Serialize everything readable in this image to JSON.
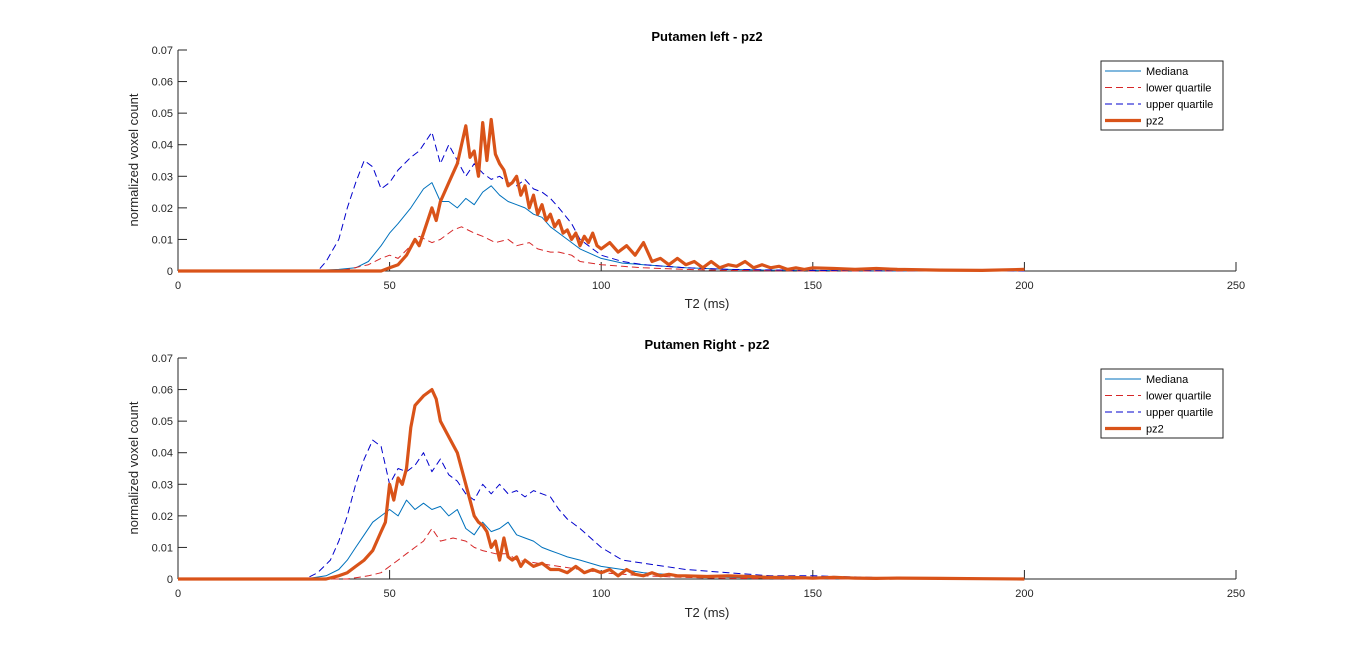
{
  "chart_data": [
    {
      "type": "line",
      "title": "Putamen left - pz2",
      "xlabel": "T2 (ms)",
      "ylabel": "normalized voxel count",
      "xlim": [
        0,
        250
      ],
      "ylim": [
        0,
        0.07
      ],
      "xticks": [
        0,
        50,
        100,
        150,
        200,
        250
      ],
      "yticks": [
        0,
        0.01,
        0.02,
        0.03,
        0.04,
        0.05,
        0.06,
        0.07
      ],
      "xtick_labels": [
        "0",
        "50",
        "100",
        "150",
        "200",
        "250"
      ],
      "ytick_labels": [
        "0",
        "0.01",
        "0.02",
        "0.03",
        "0.04",
        "0.05",
        "0.06",
        "0.07"
      ],
      "legend_position": "top-right",
      "series": [
        {
          "name": "Mediana",
          "color": "#0072BD",
          "style": "solid",
          "x": [
            0,
            30,
            38,
            42,
            45,
            48,
            50,
            52,
            55,
            58,
            60,
            62,
            64,
            66,
            68,
            70,
            72,
            74,
            76,
            78,
            80,
            82,
            84,
            86,
            88,
            90,
            92,
            95,
            100,
            105,
            110,
            120,
            130,
            140,
            150,
            160,
            170,
            200
          ],
          "y": [
            0,
            0,
            0.0005,
            0.001,
            0.003,
            0.008,
            0.012,
            0.015,
            0.02,
            0.026,
            0.028,
            0.022,
            0.022,
            0.02,
            0.023,
            0.021,
            0.025,
            0.027,
            0.024,
            0.022,
            0.021,
            0.02,
            0.018,
            0.017,
            0.014,
            0.012,
            0.01,
            0.007,
            0.004,
            0.0025,
            0.002,
            0.001,
            0.0005,
            0.0003,
            0.0002,
            0.0001,
            0,
            0
          ]
        },
        {
          "name": "lower quartile",
          "color": "#D62728",
          "style": "dashed",
          "x": [
            0,
            35,
            40,
            45,
            48,
            50,
            52,
            55,
            57,
            60,
            62,
            65,
            67,
            70,
            72,
            75,
            78,
            80,
            83,
            85,
            88,
            90,
            93,
            95,
            100,
            105,
            110,
            120,
            130,
            150,
            200
          ],
          "y": [
            0,
            0,
            0.0005,
            0.002,
            0.004,
            0.005,
            0.004,
            0.008,
            0.011,
            0.009,
            0.01,
            0.013,
            0.014,
            0.012,
            0.011,
            0.009,
            0.01,
            0.008,
            0.009,
            0.007,
            0.006,
            0.006,
            0.005,
            0.003,
            0.002,
            0.0015,
            0.001,
            0.0005,
            0.0002,
            0,
            0
          ]
        },
        {
          "name": "upper quartile",
          "color": "#0000CC",
          "style": "dashed",
          "x": [
            0,
            33,
            35,
            38,
            40,
            42,
            44,
            46,
            48,
            50,
            52,
            55,
            57,
            60,
            62,
            64,
            66,
            68,
            70,
            72,
            74,
            76,
            78,
            80,
            82,
            84,
            86,
            88,
            90,
            93,
            95,
            100,
            105,
            110,
            120,
            130,
            150,
            200
          ],
          "y": [
            0,
            0,
            0.003,
            0.01,
            0.02,
            0.028,
            0.035,
            0.033,
            0.026,
            0.028,
            0.032,
            0.036,
            0.038,
            0.044,
            0.034,
            0.04,
            0.035,
            0.03,
            0.034,
            0.031,
            0.029,
            0.03,
            0.028,
            0.027,
            0.029,
            0.026,
            0.025,
            0.023,
            0.02,
            0.015,
            0.01,
            0.005,
            0.003,
            0.002,
            0.001,
            0.0005,
            0.0002,
            0
          ]
        },
        {
          "name": "pz2",
          "color": "#D95319",
          "style": "thick",
          "x": [
            0,
            48,
            50,
            52,
            54,
            56,
            57,
            58,
            60,
            61,
            62,
            63,
            64,
            66,
            68,
            69,
            70,
            71,
            72,
            73,
            74,
            75,
            76,
            77,
            78,
            79,
            80,
            81,
            82,
            83,
            84,
            85,
            86,
            87,
            88,
            89,
            90,
            91,
            92,
            93,
            94,
            95,
            96,
            97,
            98,
            99,
            100,
            102,
            104,
            106,
            108,
            110,
            112,
            114,
            116,
            118,
            120,
            122,
            124,
            126,
            128,
            130,
            132,
            134,
            136,
            138,
            140,
            142,
            144,
            146,
            148,
            150,
            155,
            160,
            165,
            170,
            180,
            190,
            200
          ],
          "y": [
            0,
            0,
            0.001,
            0.002,
            0.005,
            0.01,
            0.008,
            0.012,
            0.02,
            0.016,
            0.022,
            0.025,
            0.028,
            0.034,
            0.046,
            0.036,
            0.038,
            0.03,
            0.047,
            0.035,
            0.048,
            0.037,
            0.034,
            0.032,
            0.027,
            0.028,
            0.03,
            0.024,
            0.027,
            0.02,
            0.024,
            0.018,
            0.021,
            0.016,
            0.018,
            0.014,
            0.016,
            0.012,
            0.013,
            0.01,
            0.012,
            0.008,
            0.011,
            0.009,
            0.012,
            0.008,
            0.007,
            0.009,
            0.006,
            0.008,
            0.005,
            0.009,
            0.003,
            0.004,
            0.002,
            0.004,
            0.002,
            0.003,
            0.001,
            0.003,
            0.001,
            0.002,
            0.0015,
            0.003,
            0.001,
            0.002,
            0.001,
            0.0015,
            0.0005,
            0.001,
            0.0005,
            0.001,
            0.0008,
            0.0005,
            0.0008,
            0.0005,
            0.0003,
            0.0002,
            0.0005
          ]
        }
      ]
    },
    {
      "type": "line",
      "title": "Putamen Right - pz2",
      "xlabel": "T2 (ms)",
      "ylabel": "normalized voxel count",
      "xlim": [
        0,
        250
      ],
      "ylim": [
        0,
        0.07
      ],
      "xticks": [
        0,
        50,
        100,
        150,
        200,
        250
      ],
      "yticks": [
        0,
        0.01,
        0.02,
        0.03,
        0.04,
        0.05,
        0.06,
        0.07
      ],
      "xtick_labels": [
        "0",
        "50",
        "100",
        "150",
        "200",
        "250"
      ],
      "ytick_labels": [
        "0",
        "0.01",
        "0.02",
        "0.03",
        "0.04",
        "0.05",
        "0.06",
        "0.07"
      ],
      "legend_position": "top-right",
      "series": [
        {
          "name": "Mediana",
          "color": "#0072BD",
          "style": "solid",
          "x": [
            0,
            30,
            35,
            38,
            40,
            42,
            44,
            46,
            48,
            50,
            52,
            54,
            56,
            58,
            60,
            62,
            64,
            66,
            68,
            70,
            72,
            74,
            76,
            78,
            80,
            82,
            84,
            86,
            88,
            90,
            92,
            95,
            100,
            105,
            110,
            120,
            130,
            140,
            150,
            200
          ],
          "y": [
            0,
            0,
            0.001,
            0.003,
            0.006,
            0.01,
            0.014,
            0.018,
            0.02,
            0.022,
            0.02,
            0.025,
            0.022,
            0.024,
            0.022,
            0.023,
            0.02,
            0.022,
            0.016,
            0.014,
            0.018,
            0.015,
            0.016,
            0.018,
            0.014,
            0.013,
            0.012,
            0.01,
            0.009,
            0.008,
            0.007,
            0.006,
            0.004,
            0.003,
            0.002,
            0.001,
            0.0005,
            0.0003,
            0.0001,
            0
          ]
        },
        {
          "name": "lower quartile",
          "color": "#D62728",
          "style": "dashed",
          "x": [
            0,
            40,
            45,
            48,
            50,
            52,
            54,
            56,
            58,
            60,
            62,
            65,
            68,
            70,
            72,
            75,
            78,
            80,
            85,
            90,
            95,
            100,
            110,
            120,
            130,
            150,
            200
          ],
          "y": [
            0,
            0,
            0.001,
            0.002,
            0.004,
            0.006,
            0.008,
            0.01,
            0.012,
            0.016,
            0.012,
            0.013,
            0.012,
            0.01,
            0.009,
            0.008,
            0.008,
            0.006,
            0.005,
            0.004,
            0.003,
            0.002,
            0.001,
            0.0005,
            0.0002,
            0,
            0
          ]
        },
        {
          "name": "upper quartile",
          "color": "#0000CC",
          "style": "dashed",
          "x": [
            0,
            30,
            33,
            36,
            38,
            40,
            42,
            44,
            46,
            48,
            50,
            52,
            54,
            56,
            58,
            60,
            62,
            64,
            66,
            68,
            70,
            72,
            74,
            76,
            78,
            80,
            82,
            84,
            86,
            88,
            90,
            92,
            95,
            100,
            105,
            110,
            120,
            130,
            140,
            150,
            170,
            200
          ],
          "y": [
            0,
            0,
            0.002,
            0.006,
            0.012,
            0.02,
            0.03,
            0.038,
            0.044,
            0.042,
            0.03,
            0.035,
            0.034,
            0.036,
            0.04,
            0.034,
            0.038,
            0.033,
            0.031,
            0.027,
            0.025,
            0.03,
            0.027,
            0.03,
            0.027,
            0.028,
            0.026,
            0.028,
            0.027,
            0.026,
            0.022,
            0.019,
            0.016,
            0.01,
            0.006,
            0.005,
            0.003,
            0.002,
            0.001,
            0.001,
            0.0003,
            0
          ]
        },
        {
          "name": "pz2",
          "color": "#D95319",
          "style": "thick",
          "x": [
            0,
            35,
            38,
            40,
            42,
            44,
            46,
            48,
            49,
            50,
            51,
            52,
            53,
            54,
            55,
            56,
            58,
            60,
            61,
            62,
            64,
            66,
            68,
            70,
            71,
            72,
            73,
            74,
            75,
            76,
            77,
            78,
            79,
            80,
            81,
            82,
            84,
            86,
            88,
            90,
            92,
            94,
            96,
            98,
            100,
            102,
            104,
            106,
            108,
            110,
            112,
            114,
            116,
            118,
            120,
            125,
            130,
            135,
            140,
            145,
            150,
            155,
            160,
            165,
            170,
            180,
            190,
            200
          ],
          "y": [
            0,
            0,
            0.001,
            0.002,
            0.004,
            0.006,
            0.009,
            0.015,
            0.018,
            0.03,
            0.025,
            0.032,
            0.03,
            0.035,
            0.048,
            0.055,
            0.058,
            0.06,
            0.057,
            0.05,
            0.045,
            0.04,
            0.03,
            0.02,
            0.018,
            0.017,
            0.015,
            0.01,
            0.012,
            0.006,
            0.013,
            0.007,
            0.006,
            0.007,
            0.004,
            0.006,
            0.004,
            0.005,
            0.003,
            0.003,
            0.002,
            0.004,
            0.002,
            0.003,
            0.002,
            0.003,
            0.001,
            0.003,
            0.0015,
            0.001,
            0.002,
            0.001,
            0.0015,
            0.001,
            0.001,
            0.0008,
            0.001,
            0.0008,
            0.0005,
            0.0005,
            0.0003,
            0.0005,
            0.0003,
            0.0002,
            0.0003,
            0.0002,
            0.0001,
            0
          ]
        }
      ]
    }
  ]
}
